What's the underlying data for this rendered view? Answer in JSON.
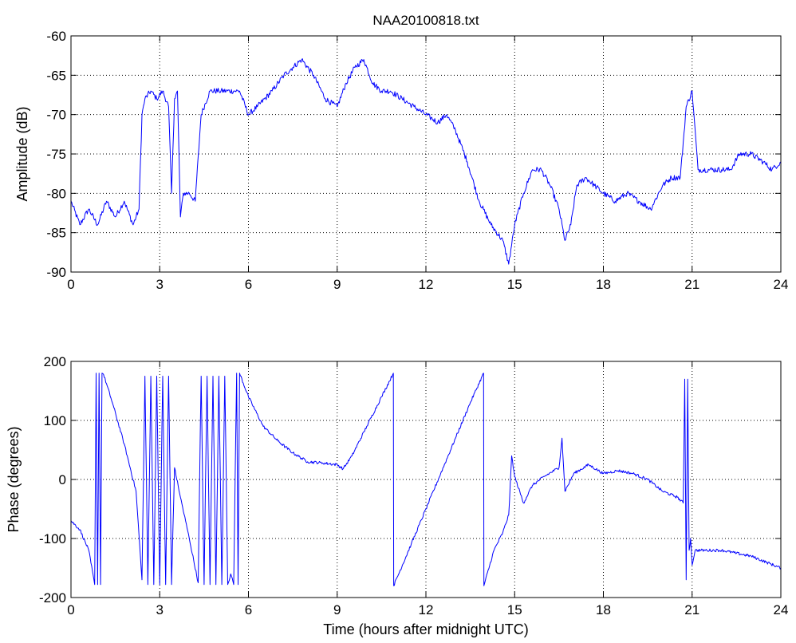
{
  "figure": {
    "background": "#ffffff",
    "line_color": "#0000ff"
  },
  "chart_data": [
    {
      "type": "line",
      "title": "NAA20100818.txt",
      "xlabel": "",
      "ylabel": "Amplitude (dB)",
      "xlim": [
        0,
        24
      ],
      "ylim": [
        -90,
        -60
      ],
      "xticks": [
        0,
        3,
        6,
        9,
        12,
        15,
        18,
        21,
        24
      ],
      "yticks": [
        -90,
        -85,
        -80,
        -75,
        -70,
        -65,
        -60
      ],
      "grid": true,
      "series": [
        {
          "color": "#0000ff",
          "x": [
            0,
            0.3,
            0.6,
            0.9,
            1.2,
            1.5,
            1.8,
            2.1,
            2.3,
            2.4,
            2.5,
            2.7,
            2.9,
            3.1,
            3.3,
            3.4,
            3.5,
            3.6,
            3.7,
            3.8,
            4.0,
            4.2,
            4.4,
            4.7,
            5.0,
            5.5,
            5.7,
            6.0,
            6.3,
            6.8,
            7.2,
            7.5,
            7.8,
            8.2,
            8.6,
            9.0,
            9.3,
            9.6,
            9.9,
            10.2,
            10.5,
            10.8,
            11.2,
            11.6,
            12.0,
            12.4,
            12.7,
            13.0,
            13.4,
            13.8,
            14.2,
            14.6,
            14.8,
            15.0,
            15.3,
            15.6,
            15.9,
            16.2,
            16.5,
            16.7,
            16.9,
            17.1,
            17.4,
            17.7,
            18.0,
            18.4,
            18.8,
            19.2,
            19.6,
            20.0,
            20.3,
            20.6,
            20.8,
            21.0,
            21.2,
            21.6,
            22.0,
            22.3,
            22.6,
            23.0,
            23.4,
            23.7,
            24.0
          ],
          "values": [
            -81,
            -84,
            -82,
            -84,
            -81,
            -83,
            -81,
            -84,
            -82,
            -70,
            -68,
            -67,
            -68,
            -67,
            -69,
            -80,
            -68,
            -67,
            -83,
            -80,
            -80,
            -81,
            -70,
            -67,
            -67,
            -67,
            -67,
            -70,
            -69,
            -67,
            -65,
            -64,
            -63,
            -65,
            -68,
            -69,
            -66,
            -64,
            -63,
            -66,
            -67,
            -67,
            -68,
            -69,
            -70,
            -71,
            -70,
            -72,
            -76,
            -81,
            -84,
            -86,
            -89,
            -84,
            -80,
            -77,
            -77,
            -79,
            -82,
            -86,
            -84,
            -79,
            -78,
            -79,
            -80,
            -81,
            -80,
            -81,
            -82,
            -79,
            -78,
            -78,
            -69,
            -67,
            -77,
            -77,
            -77,
            -77,
            -75,
            -75,
            -76,
            -77,
            -76
          ]
        }
      ]
    },
    {
      "type": "line",
      "title": "",
      "xlabel": "Time (hours after midnight UTC)",
      "ylabel": "Phase (degrees)",
      "xlim": [
        0,
        24
      ],
      "ylim": [
        -200,
        200
      ],
      "xticks": [
        0,
        3,
        6,
        9,
        12,
        15,
        18,
        21,
        24
      ],
      "yticks": [
        -200,
        -100,
        0,
        100,
        200
      ],
      "grid": true,
      "series": [
        {
          "color": "#0000ff",
          "x": [
            0,
            0.3,
            0.6,
            0.8,
            0.85,
            0.9,
            0.95,
            1.0,
            1.05,
            1.1,
            1.4,
            1.8,
            2.2,
            2.4,
            2.5,
            2.6,
            2.7,
            2.8,
            2.9,
            3.0,
            3.1,
            3.2,
            3.3,
            3.4,
            3.5,
            3.7,
            4.0,
            4.3,
            4.4,
            4.5,
            4.6,
            4.7,
            4.8,
            4.9,
            5.0,
            5.1,
            5.2,
            5.3,
            5.4,
            5.5,
            5.6,
            5.65,
            5.7,
            6.0,
            6.5,
            7.0,
            7.5,
            8.0,
            8.5,
            9.0,
            9.2,
            9.5,
            10.0,
            10.5,
            10.9,
            10.91,
            11.5,
            12.0,
            12.5,
            13.0,
            13.5,
            13.95,
            13.96,
            14.3,
            14.6,
            14.8,
            14.9,
            15.0,
            15.3,
            15.6,
            16.0,
            16.5,
            16.6,
            16.7,
            17.0,
            17.5,
            18.0,
            18.5,
            19.0,
            19.5,
            20.0,
            20.5,
            20.7,
            20.75,
            20.8,
            20.85,
            20.9,
            20.95,
            21.0,
            21.1,
            21.5,
            22.0,
            22.5,
            23.0,
            23.5,
            24.0
          ],
          "values": [
            -70,
            -85,
            -120,
            -178,
            180,
            -178,
            180,
            -178,
            180,
            178,
            130,
            60,
            -20,
            -170,
            175,
            -178,
            175,
            -178,
            175,
            -178,
            175,
            -178,
            175,
            -178,
            20,
            -30,
            -100,
            -175,
            175,
            -178,
            175,
            -178,
            175,
            -178,
            175,
            -178,
            175,
            -178,
            -160,
            -178,
            180,
            -178,
            180,
            140,
            90,
            65,
            45,
            30,
            28,
            25,
            18,
            40,
            90,
            140,
            180,
            -180,
            -110,
            -50,
            10,
            70,
            130,
            180,
            -180,
            -120,
            -90,
            -60,
            40,
            5,
            -40,
            -10,
            5,
            20,
            70,
            -20,
            10,
            25,
            10,
            15,
            10,
            0,
            -20,
            -30,
            -40,
            170,
            -170,
            170,
            -120,
            -100,
            -145,
            -120,
            -120,
            -120,
            -125,
            -130,
            -140,
            -150
          ]
        }
      ]
    }
  ]
}
